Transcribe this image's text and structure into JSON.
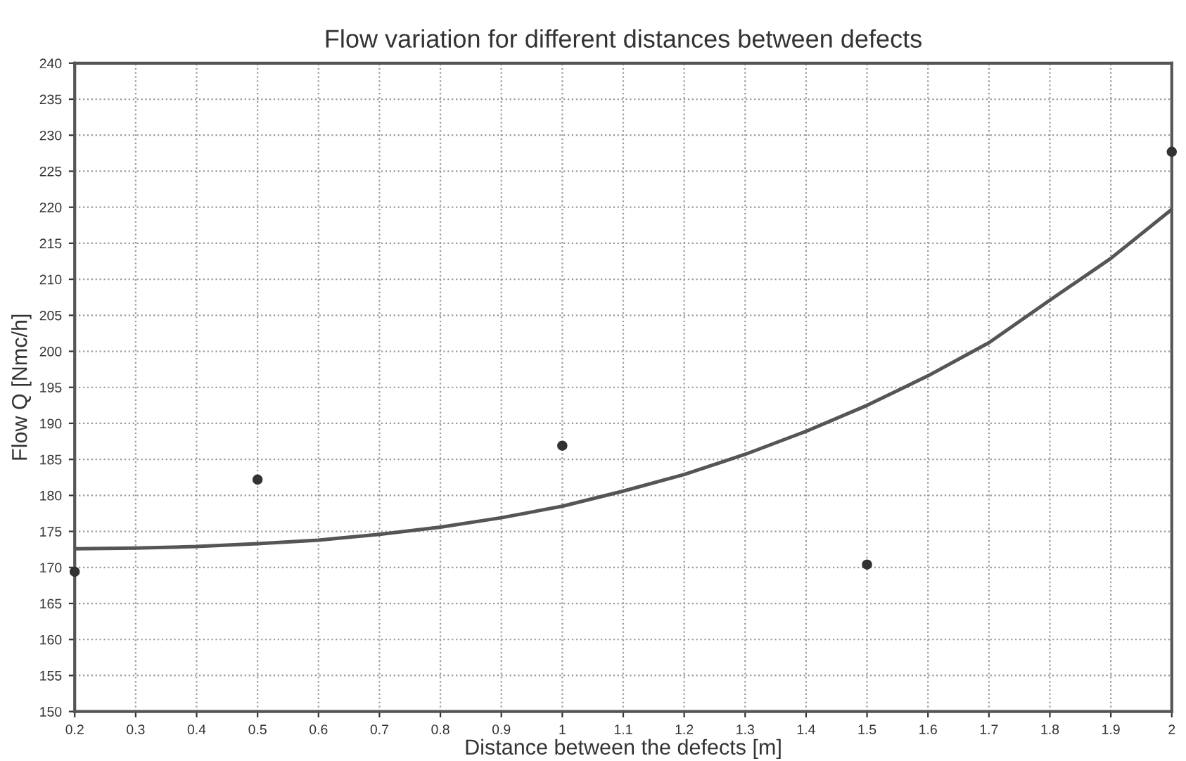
{
  "chart_data": {
    "type": "scatter",
    "title": "Flow variation for different distances between defects",
    "xlabel": "Distance between the defects [m]",
    "ylabel": "Flow Q [Nmc/h]",
    "series": [
      {
        "color": "#333333",
        "marker": "circle",
        "x": [
          0.2,
          0.5,
          1,
          1.5,
          2
        ],
        "values": [
          169.4,
          182.2,
          186.9,
          170.4,
          227.7
        ]
      },
      {
        "type": "line",
        "color": "#555555",
        "line_style": "solid",
        "x": [
          0.2,
          0.3,
          0.4,
          0.5,
          0.6,
          0.7,
          0.8,
          0.9,
          1.0,
          1.1,
          1.2,
          1.3,
          1.4,
          1.5,
          1.6,
          1.7,
          1.8,
          1.9,
          2.0
        ],
        "values": [
          172.6,
          172.7,
          172.9,
          173.3,
          173.8,
          174.6,
          175.6,
          176.9,
          178.5,
          180.6,
          182.9,
          185.7,
          188.9,
          192.5,
          196.6,
          201.2,
          207.1,
          212.9,
          219.7
        ]
      }
    ],
    "xlim": [
      0.2,
      2
    ],
    "xticks": [
      0.2,
      0.3,
      0.4,
      0.5,
      0.6,
      0.7,
      0.8,
      0.9,
      1,
      1.1,
      1.2,
      1.3,
      1.4,
      1.5,
      1.6,
      1.7,
      1.8,
      1.9,
      2
    ],
    "ylim": [
      150,
      240
    ],
    "yticks": [
      150,
      155,
      160,
      165,
      170,
      175,
      180,
      185,
      190,
      195,
      200,
      205,
      210,
      215,
      220,
      225,
      230,
      235,
      240
    ],
    "grid": true
  }
}
